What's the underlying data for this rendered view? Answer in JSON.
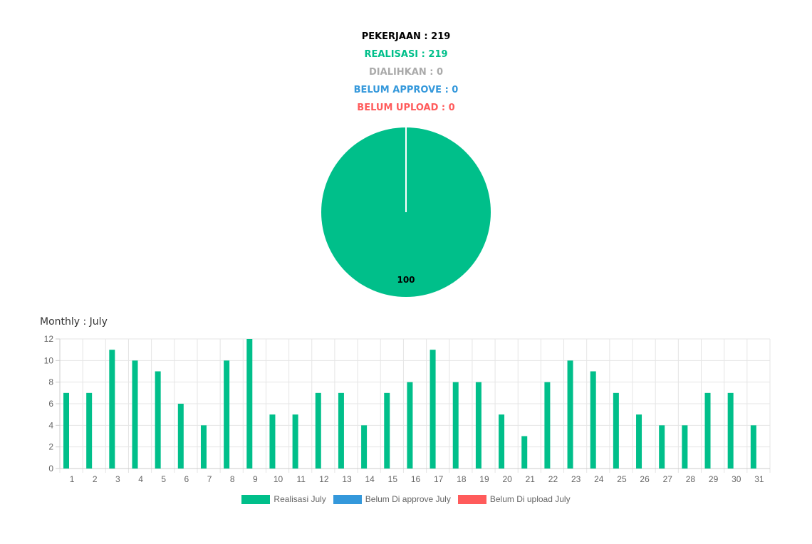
{
  "summary": {
    "pekerjaan": "PEKERJAAN : 219",
    "realisasi": "REALISASI : 219",
    "dialihkan": "DIALIHKAN : 0",
    "belum_approve": "BELUM APPROVE : 0",
    "belum_upload": "BELUM UPLOAD : 0"
  },
  "colors": {
    "black": "#000000",
    "green": "#00bf8a",
    "gray": "#aaaaaa",
    "blue": "#3498db",
    "red": "#ff5b5b"
  },
  "monthly_title": "Monthly : July",
  "chart_data": [
    {
      "type": "pie",
      "slices": [
        {
          "label": "",
          "value": 100,
          "color": "#00bf8a"
        }
      ],
      "data_label": "100"
    },
    {
      "type": "bar",
      "categories": [
        "1",
        "2",
        "3",
        "4",
        "5",
        "6",
        "7",
        "8",
        "9",
        "10",
        "11",
        "12",
        "13",
        "14",
        "15",
        "16",
        "17",
        "18",
        "19",
        "20",
        "21",
        "22",
        "23",
        "24",
        "25",
        "26",
        "27",
        "28",
        "29",
        "30",
        "31"
      ],
      "series": [
        {
          "name": "Realisasi July",
          "color": "#00bf8a",
          "values": [
            7,
            7,
            11,
            10,
            9,
            6,
            4,
            10,
            12,
            5,
            5,
            7,
            7,
            4,
            7,
            8,
            11,
            8,
            8,
            5,
            3,
            8,
            10,
            9,
            7,
            5,
            4,
            4,
            7,
            7,
            4
          ]
        },
        {
          "name": "Belum Di approve July",
          "color": "#3498db",
          "values": [
            0,
            0,
            0,
            0,
            0,
            0,
            0,
            0,
            0,
            0,
            0,
            0,
            0,
            0,
            0,
            0,
            0,
            0,
            0,
            0,
            0,
            0,
            0,
            0,
            0,
            0,
            0,
            0,
            0,
            0,
            0
          ]
        },
        {
          "name": "Belum Di upload July",
          "color": "#ff5b5b",
          "values": [
            0,
            0,
            0,
            0,
            0,
            0,
            0,
            0,
            0,
            0,
            0,
            0,
            0,
            0,
            0,
            0,
            0,
            0,
            0,
            0,
            0,
            0,
            0,
            0,
            0,
            0,
            0,
            0,
            0,
            0,
            0
          ]
        }
      ],
      "ylim": [
        0,
        12
      ],
      "yticks": [
        0,
        2,
        4,
        6,
        8,
        10,
        12
      ],
      "grid": true,
      "legend": "bottom"
    }
  ]
}
